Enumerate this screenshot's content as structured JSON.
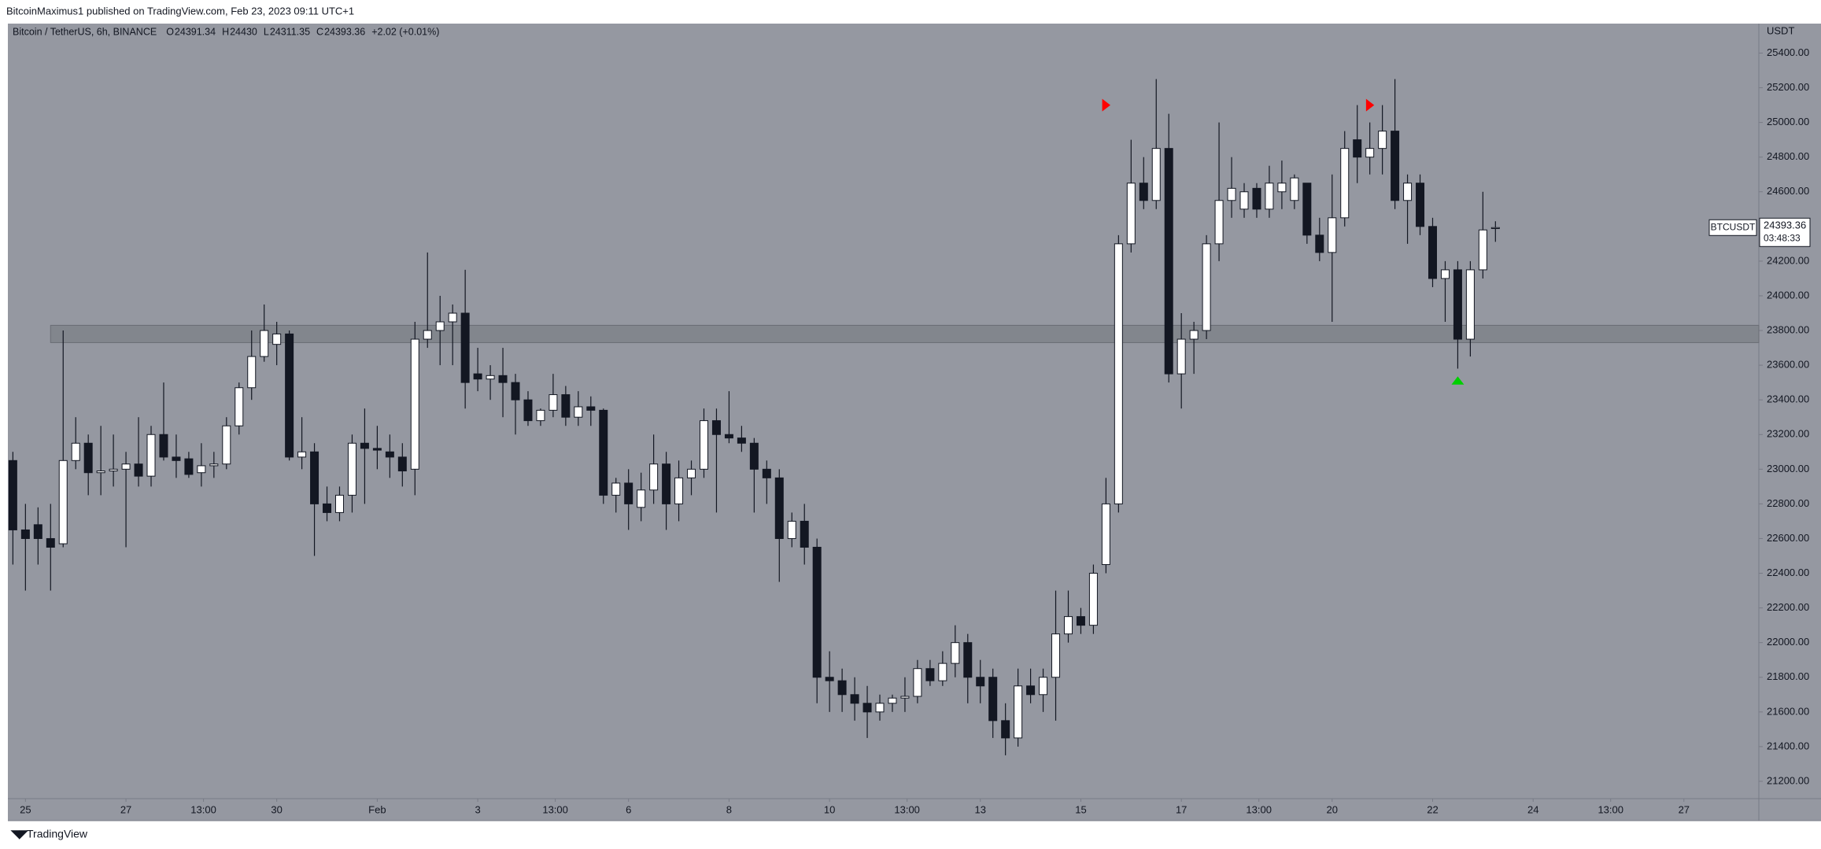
{
  "page": {
    "publisher_line": "BitcoinMaximus1 published on TradingView.com, Feb 23, 2023 09:11 UTC+1",
    "brand": "TradingView"
  },
  "chart_data": {
    "type": "candlestick",
    "title": "Bitcoin / TetherUS, 6h, BINANCE",
    "ohlc_labels": [
      "O",
      "H",
      "L",
      "C"
    ],
    "change": "+2.02 (+0.01%)",
    "y_unit": "USDT",
    "symbol": "BTCUSDT",
    "countdown": "03:48:33",
    "bull_color": "#ffffff",
    "bear_color": "#131722",
    "background": "#9598a1",
    "open": [
      23050,
      22650,
      22680,
      22600,
      22570,
      23050,
      23150,
      22980,
      22990,
      23000,
      23030,
      22960,
      23200,
      23070,
      23060,
      22980,
      23020,
      23030,
      23250,
      23470,
      23650,
      23720,
      23780,
      23070,
      23100,
      22800,
      22750,
      22850,
      23150,
      23120,
      23100,
      23070,
      23000,
      23750,
      23800,
      23850,
      23900,
      23550,
      23520,
      23540,
      23500,
      23400,
      23280,
      23340,
      23430,
      23300,
      23360,
      23340,
      22850,
      22920,
      22780,
      22880,
      23030,
      22800,
      22950,
      23000,
      23280,
      23200,
      23180,
      23150,
      23000,
      22950,
      22600,
      22700,
      22550,
      21800,
      21780,
      21700,
      21650,
      21600,
      21650,
      21680,
      21690,
      21850,
      21780,
      21880,
      22000,
      21800,
      21800,
      21550,
      21450,
      21750,
      21700,
      21800,
      22050,
      22150,
      22100,
      22450,
      22800,
      24300,
      24650,
      24550,
      24850,
      23550,
      23750,
      23800,
      24300,
      24550,
      24500,
      24620,
      24500,
      24600,
      24550,
      24650,
      24350,
      24250,
      24450,
      24900,
      24800,
      24850,
      24950,
      24550,
      24650,
      24400,
      24100,
      24150,
      23750,
      24150,
      24391.34
    ],
    "high": [
      23100,
      22800,
      22780,
      22800,
      23800,
      23300,
      23200,
      23250,
      23200,
      23100,
      23300,
      23250,
      23500,
      23200,
      23100,
      23150,
      23100,
      23300,
      23500,
      23800,
      23950,
      23850,
      23800,
      23300,
      23150,
      22900,
      22900,
      23200,
      23350,
      23250,
      23200,
      23150,
      23850,
      24250,
      24000,
      23950,
      24150,
      23700,
      23600,
      23700,
      23550,
      23450,
      23350,
      23550,
      23480,
      23450,
      23420,
      23350,
      22950,
      23000,
      22980,
      23200,
      23100,
      23050,
      23050,
      23350,
      23350,
      23450,
      23250,
      23180,
      23050,
      23000,
      22750,
      22800,
      22600,
      21950,
      21850,
      21800,
      21750,
      21700,
      21700,
      21800,
      21900,
      21900,
      21950,
      22100,
      22050,
      21900,
      21850,
      21650,
      21850,
      21850,
      21850,
      22300,
      22300,
      22200,
      22450,
      22950,
      24350,
      24900,
      24800,
      25250,
      25050,
      23900,
      23850,
      24350,
      25000,
      24800,
      24650,
      24650,
      24750,
      24780,
      24700,
      24650,
      24450,
      24700,
      24950,
      25100,
      25000,
      25100,
      25250,
      24700,
      24700,
      24450,
      24200,
      24200,
      24200,
      24600,
      24430
    ],
    "low": [
      22450,
      22300,
      22450,
      22300,
      22550,
      23000,
      22850,
      22850,
      22900,
      22550,
      22900,
      22900,
      23050,
      22950,
      22950,
      22900,
      22950,
      23000,
      23200,
      23400,
      23620,
      23600,
      23050,
      23000,
      22500,
      22700,
      22700,
      22750,
      22800,
      23000,
      22950,
      22900,
      22850,
      23700,
      23600,
      23600,
      23350,
      23450,
      23400,
      23300,
      23200,
      23250,
      23250,
      23300,
      23250,
      23250,
      23250,
      22800,
      22750,
      22650,
      22700,
      22800,
      22650,
      22700,
      22850,
      22950,
      22750,
      23150,
      23100,
      22750,
      22800,
      22350,
      22550,
      22450,
      21650,
      21600,
      21600,
      21550,
      21450,
      21550,
      21600,
      21600,
      21650,
      21750,
      21750,
      21800,
      21650,
      21650,
      21450,
      21350,
      21400,
      21650,
      21600,
      21550,
      22000,
      22050,
      22050,
      22400,
      22750,
      24250,
      24500,
      24500,
      23500,
      23350,
      23550,
      23750,
      24200,
      24450,
      24450,
      24450,
      24450,
      24500,
      24500,
      24300,
      24200,
      23850,
      24400,
      24650,
      24700,
      24700,
      24500,
      24300,
      24350,
      24050,
      23850,
      23580,
      23650,
      24100,
      24311.35
    ],
    "close": [
      22650,
      22600,
      22600,
      22550,
      23050,
      23150,
      22980,
      22990,
      23000,
      23030,
      22960,
      23200,
      23070,
      23050,
      22970,
      23020,
      23030,
      23250,
      23470,
      23650,
      23800,
      23780,
      23070,
      23100,
      22800,
      22750,
      22850,
      23150,
      23120,
      23110,
      23070,
      22990,
      23750,
      23800,
      23850,
      23900,
      23500,
      23520,
      23540,
      23500,
      23400,
      23280,
      23340,
      23430,
      23300,
      23360,
      23340,
      22850,
      22920,
      22800,
      22880,
      23030,
      22800,
      22950,
      23000,
      23280,
      23200,
      23180,
      23150,
      23000,
      22950,
      22600,
      22700,
      22550,
      21800,
      21780,
      21700,
      21650,
      21600,
      21650,
      21680,
      21690,
      21850,
      21780,
      21880,
      22000,
      21800,
      21750,
      21550,
      21450,
      21750,
      21700,
      21800,
      22050,
      22150,
      22100,
      22400,
      22800,
      24300,
      24650,
      24550,
      24850,
      23550,
      23750,
      23800,
      24300,
      24550,
      24620,
      24600,
      24500,
      24650,
      24650,
      24680,
      24350,
      24250,
      24450,
      24850,
      24800,
      24850,
      24950,
      24550,
      24650,
      24400,
      24100,
      24150,
      23750,
      24150,
      24380,
      24393.36
    ],
    "zone": {
      "low": 23730,
      "high": 23830,
      "color": "#7f828a"
    },
    "markers": [
      {
        "x": 87,
        "y": 25100,
        "color": "#ff0000",
        "direction": "right"
      },
      {
        "x": 108,
        "y": 25100,
        "color": "#ff0000",
        "direction": "right"
      },
      {
        "x": 115,
        "y": 23510,
        "color": "#00d000",
        "direction": "up"
      }
    ],
    "xlim": [
      -0.4,
      138.9
    ],
    "ylim": [
      21100,
      25570
    ],
    "xticks": [
      {
        "value": 1,
        "label": "25"
      },
      {
        "value": 9,
        "label": "27"
      },
      {
        "value": 15.17,
        "label": "13:00"
      },
      {
        "value": 21,
        "label": "30"
      },
      {
        "value": 29,
        "label": "Feb"
      },
      {
        "value": 37,
        "label": "3"
      },
      {
        "value": 43.17,
        "label": "13:00"
      },
      {
        "value": 49,
        "label": "6"
      },
      {
        "value": 57,
        "label": "8"
      },
      {
        "value": 65,
        "label": "10"
      },
      {
        "value": 71.17,
        "label": "13:00"
      },
      {
        "value": 77,
        "label": "13"
      },
      {
        "value": 85,
        "label": "15"
      },
      {
        "value": 93,
        "label": "17"
      },
      {
        "value": 99.17,
        "label": "13:00"
      },
      {
        "value": 105,
        "label": "20"
      },
      {
        "value": 113,
        "label": "22"
      },
      {
        "value": 121,
        "label": "24"
      },
      {
        "value": 127.17,
        "label": "13:00"
      },
      {
        "value": 133,
        "label": "27"
      }
    ],
    "yticks": [
      {
        "value": 21200,
        "label": "21200.00"
      },
      {
        "value": 21400,
        "label": "21400.00"
      },
      {
        "value": 21600,
        "label": "21600.00"
      },
      {
        "value": 21800,
        "label": "21800.00"
      },
      {
        "value": 22000,
        "label": "22000.00"
      },
      {
        "value": 22200,
        "label": "22200.00"
      },
      {
        "value": 22400,
        "label": "22400.00"
      },
      {
        "value": 22600,
        "label": "22600.00"
      },
      {
        "value": 22800,
        "label": "22800.00"
      },
      {
        "value": 23000,
        "label": "23000.00"
      },
      {
        "value": 23200,
        "label": "23200.00"
      },
      {
        "value": 23400,
        "label": "23400.00"
      },
      {
        "value": 23600,
        "label": "23600.00"
      },
      {
        "value": 23800,
        "label": "23800.00"
      },
      {
        "value": 24000,
        "label": "24000.00"
      },
      {
        "value": 24200,
        "label": "24200.00"
      },
      {
        "value": 24400,
        "label": "24400.00"
      },
      {
        "value": 24600,
        "label": "24600.00"
      },
      {
        "value": 24800,
        "label": "24800.00"
      },
      {
        "value": 25000,
        "label": "25000.00"
      },
      {
        "value": 25200,
        "label": "25200.00"
      },
      {
        "value": 25400,
        "label": "25400.00"
      }
    ],
    "grid": false
  }
}
